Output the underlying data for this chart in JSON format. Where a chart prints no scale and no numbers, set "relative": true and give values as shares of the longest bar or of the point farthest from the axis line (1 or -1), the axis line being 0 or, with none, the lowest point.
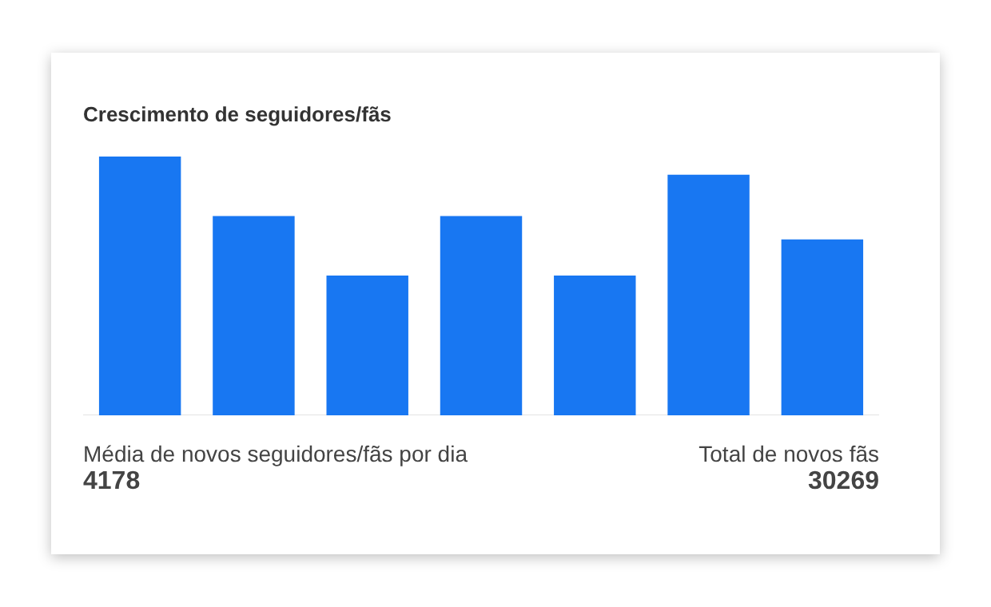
{
  "chart_data": {
    "type": "bar",
    "title": "Crescimento de seguidores/fãs",
    "categories": [
      null,
      null,
      null,
      null,
      null,
      null,
      null
    ],
    "values": [
      1,
      0.77,
      0.54,
      0.77,
      0.54,
      0.93,
      0.68
    ],
    "color": "#1877f2",
    "relative": true,
    "grid": false,
    "legend": false,
    "annotations": [
      "Média de novos seguidores/fãs por dia",
      "4178",
      "Total de novos fãs",
      "30269"
    ]
  }
}
